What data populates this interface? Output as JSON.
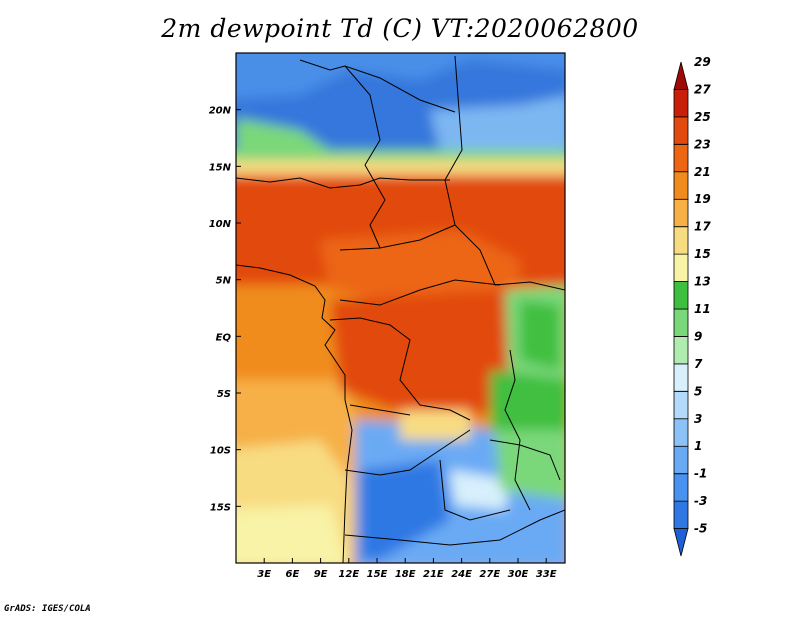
{
  "title": "2m dewpoint Td (C) VT:2020062800",
  "credit": "GrADS: IGES/COLA",
  "map": {
    "lon_range": [
      0,
      35
    ],
    "lat_range": [
      -20,
      25
    ],
    "lon_ticks": [
      {
        "value": 3,
        "label": "3E"
      },
      {
        "value": 6,
        "label": "6E"
      },
      {
        "value": 9,
        "label": "9E"
      },
      {
        "value": 12,
        "label": "12E"
      },
      {
        "value": 15,
        "label": "15E"
      },
      {
        "value": 18,
        "label": "18E"
      },
      {
        "value": 21,
        "label": "21E"
      },
      {
        "value": 24,
        "label": "24E"
      },
      {
        "value": 27,
        "label": "27E"
      },
      {
        "value": 30,
        "label": "30E"
      },
      {
        "value": 33,
        "label": "33E"
      }
    ],
    "lat_ticks": [
      {
        "value": 20,
        "label": "20N"
      },
      {
        "value": 15,
        "label": "15N"
      },
      {
        "value": 10,
        "label": "10N"
      },
      {
        "value": 5,
        "label": "5N"
      },
      {
        "value": 0,
        "label": "EQ"
      },
      {
        "value": -5,
        "label": "5S"
      },
      {
        "value": -10,
        "label": "10S"
      },
      {
        "value": -15,
        "label": "15S"
      }
    ]
  },
  "colorbar": {
    "levels": [
      "-5",
      "-3",
      "-1",
      "1",
      "3",
      "5",
      "7",
      "9",
      "11",
      "13",
      "15",
      "17",
      "19",
      "21",
      "23",
      "25",
      "27",
      "29"
    ],
    "colors": [
      "#1f5fd6",
      "#2f78e3",
      "#4a92ef",
      "#6aaaf4",
      "#8cc2f8",
      "#b4dafb",
      "#d8f0fc",
      "#b0ecb0",
      "#7ad87a",
      "#3fbf3f",
      "#f8f3a6",
      "#f8dc82",
      "#f6b046",
      "#f08c1e",
      "#ec6614",
      "#e24a10",
      "#c81e0a",
      "#a00a06"
    ]
  }
}
